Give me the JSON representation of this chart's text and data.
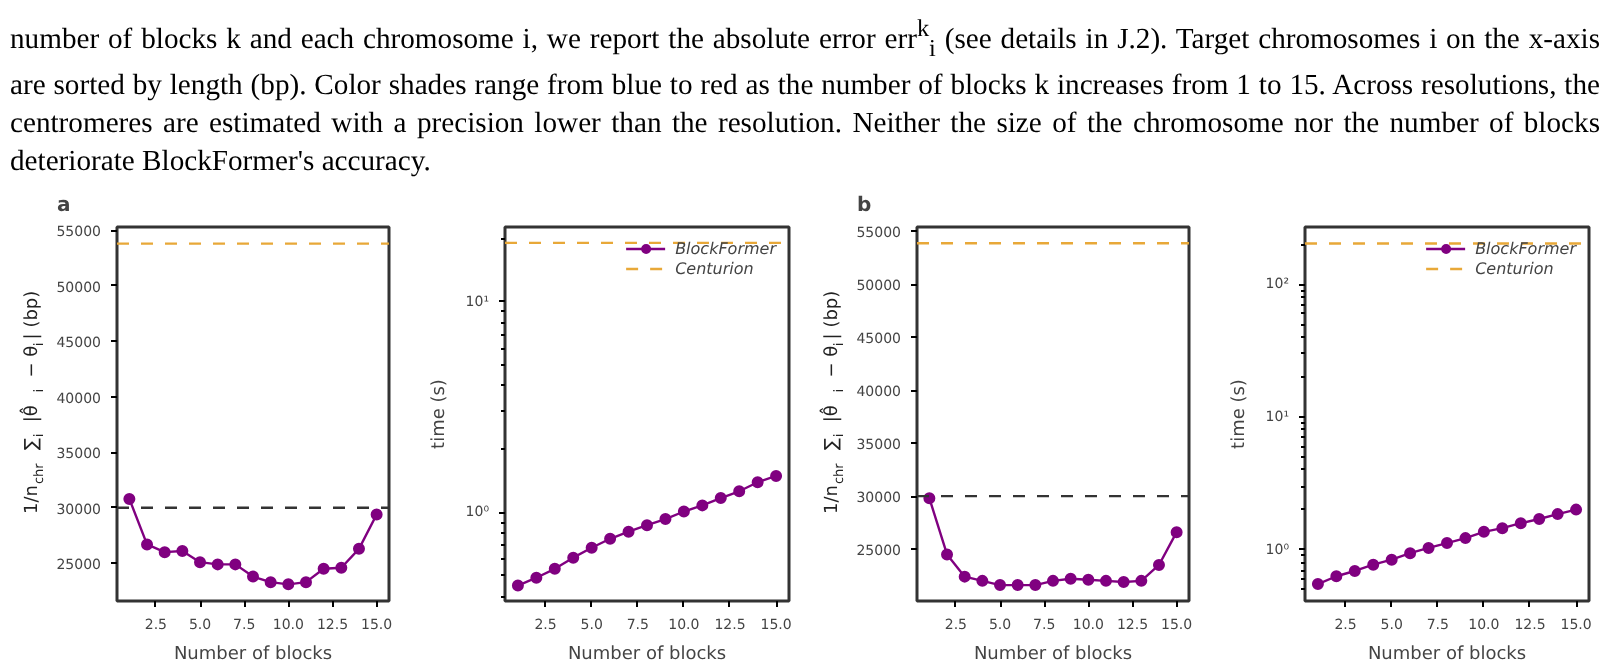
{
  "chart_data": [
    {
      "type": "line",
      "title": "a",
      "annotations": [
        "number of blocks k and each chromosome i, we report the absolute error err$^{k}$$_{i}$ (see details in J.2). Target chromosomes i on the x-axis are sorted by length (bp). Color shades range from blue to red as the number of blocks k increases from 1 to 15. Across resolutions, the centromeres are estimated with a precision lower than the resolution. Neither the size of the chromosome nor the number of blocks deteriorate BlockFormer's accuracy."
      ],
      "xlabel": "Number of blocks",
      "ylabel": "1/n$_{chr}$ ∑$_{i}$ |θ̂$_{i}$ − θ$_{i}$| (bp)",
      "x": [
        1,
        2,
        3,
        4,
        5,
        6,
        7,
        8,
        9,
        10,
        11,
        12,
        13,
        14,
        15
      ],
      "series": [
        {
          "color": "#800080",
          "values": [
            30800,
            26700,
            26000,
            26100,
            25100,
            24900,
            24900,
            23800,
            23300,
            23100,
            23300,
            24500,
            24600,
            26300,
            29400
          ]
        }
      ],
      "xlim": [
        0.3,
        15.7
      ],
      "xticks": [
        2.5,
        {
          "value": 5,
          "label": "5.0"
        },
        7.5,
        {
          "value": 10,
          "label": "10.0"
        },
        12.5,
        {
          "value": 15,
          "label": "15.0"
        }
      ],
      "ylim": [
        21600,
        55300
      ],
      "yticks": [
        25000,
        30000,
        35000,
        40000,
        45000,
        50000,
        55000
      ],
      "ref_lines": [
        {
          "axis": "y",
          "value": 53800,
          "color": "#e8a838",
          "line_style": "dashed"
        },
        {
          "axis": "y",
          "value": 30000,
          "color": "#333333",
          "line_style": "dashed"
        }
      ],
      "marker": "circle",
      "grid": false
    },
    {
      "type": "line",
      "xlabel": "Number of blocks",
      "ylabel": "time (s)",
      "log": "y",
      "x": [
        1,
        2,
        3,
        4,
        5,
        6,
        7,
        8,
        9,
        10,
        11,
        12,
        13,
        14,
        15
      ],
      "series": [
        {
          "name": "BlockFormer",
          "color": "#800080",
          "values": [
            0.45,
            0.49,
            0.54,
            0.61,
            0.68,
            0.75,
            0.81,
            0.87,
            0.93,
            1.01,
            1.08,
            1.17,
            1.26,
            1.39,
            1.49
          ]
        }
      ],
      "xlim": [
        0.3,
        15.7
      ],
      "xticks": [
        2.5,
        {
          "value": 5,
          "label": "5.0"
        },
        7.5,
        {
          "value": 10,
          "label": "10.0"
        },
        12.5,
        {
          "value": 15,
          "label": "15.0"
        }
      ],
      "ylim": [
        0.38,
        22.6
      ],
      "yticks": [
        {
          "value": 1,
          "label": "10⁰"
        },
        {
          "value": 10,
          "label": "10¹"
        }
      ],
      "ref_lines": [
        {
          "axis": "y",
          "value": 19.0,
          "label": "Centurion",
          "color": "#e8a838",
          "line_style": "dashed"
        }
      ],
      "marker": "circle",
      "grid": false,
      "legend": "top right"
    },
    {
      "type": "line",
      "title": "b",
      "xlabel": "Number of blocks",
      "ylabel": "1/n$_{chr}$ ∑$_{i}$ |θ̂$_{i}$ − θ$_{i}$| (bp)",
      "x": [
        1,
        2,
        3,
        4,
        5,
        6,
        7,
        8,
        9,
        10,
        11,
        12,
        13,
        14,
        15
      ],
      "series": [
        {
          "color": "#800080",
          "values": [
            29800,
            24500,
            22400,
            22000,
            21600,
            21600,
            21600,
            22000,
            22200,
            22100,
            22000,
            21900,
            22000,
            23500,
            26600
          ]
        }
      ],
      "xlim": [
        0.3,
        15.7
      ],
      "xticks": [
        2.5,
        {
          "value": 5,
          "label": "5.0"
        },
        7.5,
        {
          "value": 10,
          "label": "10.0"
        },
        12.5,
        {
          "value": 15,
          "label": "15.0"
        }
      ],
      "ylim": [
        20100,
        55400
      ],
      "yticks": [
        25000,
        30000,
        35000,
        40000,
        45000,
        50000,
        55000
      ],
      "ref_lines": [
        {
          "axis": "y",
          "value": 53860,
          "color": "#e8a838",
          "line_style": "dashed"
        },
        {
          "axis": "y",
          "value": 30000,
          "color": "#333333",
          "line_style": "dashed"
        }
      ],
      "marker": "circle",
      "grid": false
    },
    {
      "type": "line",
      "xlabel": "Number of blocks",
      "ylabel": "time (s)",
      "log": "y",
      "x": [
        1,
        2,
        3,
        4,
        5,
        6,
        7,
        8,
        9,
        10,
        11,
        12,
        13,
        14,
        15
      ],
      "series": [
        {
          "name": "BlockFormer",
          "color": "#800080",
          "values": [
            0.55,
            0.63,
            0.69,
            0.77,
            0.84,
            0.94,
            1.03,
            1.12,
            1.22,
            1.36,
            1.45,
            1.58,
            1.7,
            1.85,
            2.0
          ]
        }
      ],
      "xlim": [
        0.3,
        15.7
      ],
      "xticks": [
        2.5,
        {
          "value": 5,
          "label": "5.0"
        },
        7.5,
        {
          "value": 10,
          "label": "10.0"
        },
        12.5,
        {
          "value": 15,
          "label": "15.0"
        }
      ],
      "ylim": [
        0.41,
        269
      ],
      "yticks": [
        {
          "value": 1,
          "label": "10⁰"
        },
        {
          "value": 10,
          "label": "10¹"
        },
        {
          "value": 100,
          "label": "10²"
        }
      ],
      "ref_lines": [
        {
          "axis": "y",
          "value": 202,
          "label": "Centurion",
          "color": "#e8a838",
          "line_style": "dashed"
        }
      ],
      "marker": "circle",
      "grid": false,
      "legend": "top right"
    }
  ]
}
